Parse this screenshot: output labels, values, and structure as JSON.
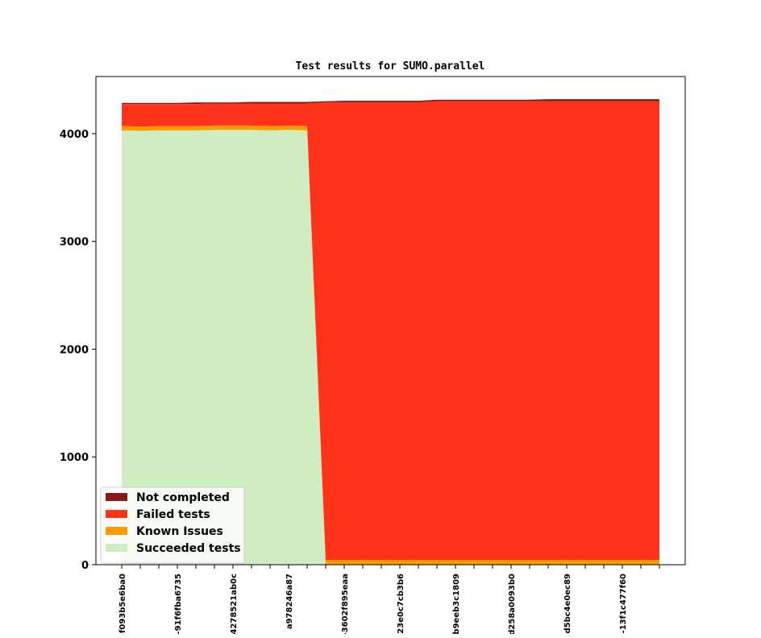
{
  "chart_data": {
    "type": "area",
    "title": "Test results for SUMO.parallel",
    "xlabel": "",
    "ylabel": "",
    "ylim": [
      0,
      4530
    ],
    "yticks": [
      0,
      1000,
      2000,
      3000,
      4000
    ],
    "grid": false,
    "legend_position": "lower-left",
    "x_tick_labels": [
      "-f093b5e6ba0",
      "-91f6fba6735",
      "4278521ab0c",
      "a978246a87",
      "-3602f895eaa",
      "23e0c7cb3b6",
      "b9eeb3c1809",
      "d258a0093b0",
      "-d5bc4e0ec89",
      "-13f1c477f60"
    ],
    "x_tick_indices": [
      0,
      3,
      6,
      9,
      12,
      15,
      18,
      21,
      24,
      27
    ],
    "num_points": 30,
    "series": [
      {
        "name": "Succeeded tests",
        "color": "#cfedc0",
        "values": [
          4030,
          4025,
          4030,
          4030,
          4030,
          4035,
          4035,
          4035,
          4030,
          4035,
          4030,
          0,
          0,
          0,
          0,
          0,
          0,
          0,
          0,
          0,
          0,
          0,
          0,
          0,
          0,
          0,
          0,
          0,
          0,
          0
        ]
      },
      {
        "name": "Known Issues",
        "color": "#ff9900",
        "values": [
          40,
          40,
          40,
          40,
          40,
          40,
          40,
          40,
          40,
          40,
          40,
          45,
          45,
          45,
          45,
          45,
          45,
          45,
          45,
          45,
          45,
          45,
          45,
          45,
          45,
          45,
          45,
          45,
          45,
          45
        ]
      },
      {
        "name": "Failed tests",
        "color": "#ff331a",
        "values": [
          205,
          210,
          205,
          205,
          205,
          205,
          205,
          205,
          210,
          205,
          210,
          4245,
          4245,
          4245,
          4245,
          4245,
          4245,
          4255,
          4255,
          4255,
          4255,
          4255,
          4255,
          4255,
          4255,
          4255,
          4255,
          4255,
          4255,
          4255
        ]
      },
      {
        "name": "Not completed",
        "color": "#8b1a1a",
        "values": [
          10,
          10,
          10,
          10,
          15,
          10,
          10,
          15,
          15,
          15,
          15,
          10,
          15,
          15,
          15,
          15,
          15,
          15,
          15,
          15,
          15,
          15,
          15,
          20,
          20,
          20,
          20,
          20,
          20,
          20
        ]
      }
    ],
    "legend_order": [
      "Not completed",
      "Failed tests",
      "Known Issues",
      "Succeeded tests"
    ]
  }
}
